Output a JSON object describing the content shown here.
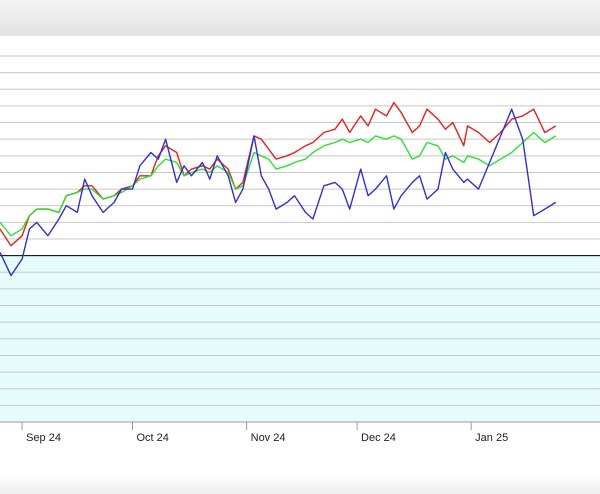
{
  "chart_data": {
    "type": "line",
    "title": "",
    "xlabel": "",
    "ylabel": "",
    "x_ticks": [
      "Sep 24",
      "Oct 24",
      "Nov 24",
      "Dec 24",
      "Jan 25"
    ],
    "x_range": [
      "2024-08-26",
      "2025-02-05"
    ],
    "y_range": [
      0,
      110
    ],
    "reference_line": 50,
    "grid": true,
    "lower_band_color": "#e6fbfb",
    "series": [
      {
        "color": "#e82020",
        "points": [
          [
            "2024-08-26",
            58
          ],
          [
            "2024-08-29",
            53
          ],
          [
            "2024-09-01",
            56
          ],
          [
            "2024-09-03",
            62
          ],
          [
            "2024-09-05",
            64
          ],
          [
            "2024-09-08",
            64
          ],
          [
            "2024-09-11",
            63
          ],
          [
            "2024-09-13",
            68
          ],
          [
            "2024-09-16",
            69
          ],
          [
            "2024-09-18",
            71
          ],
          [
            "2024-09-20",
            71
          ],
          [
            "2024-09-23",
            67
          ],
          [
            "2024-09-26",
            68
          ],
          [
            "2024-09-28",
            70
          ],
          [
            "2024-10-01",
            71
          ],
          [
            "2024-10-03",
            74
          ],
          [
            "2024-10-06",
            74
          ],
          [
            "2024-10-08",
            80
          ],
          [
            "2024-10-10",
            83
          ],
          [
            "2024-10-13",
            81
          ],
          [
            "2024-10-15",
            74
          ],
          [
            "2024-10-17",
            76
          ],
          [
            "2024-10-20",
            77
          ],
          [
            "2024-10-22",
            76
          ],
          [
            "2024-10-24",
            79
          ],
          [
            "2024-10-27",
            76
          ],
          [
            "2024-10-29",
            70
          ],
          [
            "2024-10-31",
            72
          ],
          [
            "2024-11-03",
            86
          ],
          [
            "2024-11-05",
            85
          ],
          [
            "2024-11-07",
            82
          ],
          [
            "2024-11-09",
            79
          ],
          [
            "2024-11-12",
            80
          ],
          [
            "2024-11-14",
            81
          ],
          [
            "2024-11-17",
            83
          ],
          [
            "2024-11-19",
            84
          ],
          [
            "2024-11-22",
            87
          ],
          [
            "2024-11-25",
            88
          ],
          [
            "2024-11-27",
            91
          ],
          [
            "2024-11-29",
            87
          ],
          [
            "2024-12-02",
            92
          ],
          [
            "2024-12-04",
            89
          ],
          [
            "2024-12-06",
            94
          ],
          [
            "2024-12-09",
            92
          ],
          [
            "2024-12-11",
            96
          ],
          [
            "2024-12-13",
            93
          ],
          [
            "2024-12-16",
            87
          ],
          [
            "2024-12-18",
            89
          ],
          [
            "2024-12-20",
            94
          ],
          [
            "2024-12-23",
            91
          ],
          [
            "2024-12-25",
            88
          ],
          [
            "2024-12-27",
            90
          ],
          [
            "2024-12-30",
            83
          ],
          [
            "2024-12-31",
            89
          ],
          [
            "2025-01-03",
            87
          ],
          [
            "2025-01-06",
            84
          ],
          [
            "2025-01-09",
            87
          ],
          [
            "2025-01-12",
            91
          ],
          [
            "2025-01-15",
            92
          ],
          [
            "2025-01-18",
            94
          ],
          [
            "2025-01-21",
            87
          ],
          [
            "2025-01-24",
            89
          ]
        ]
      },
      {
        "color": "#30e030",
        "points": [
          [
            "2024-08-26",
            60
          ],
          [
            "2024-08-29",
            56
          ],
          [
            "2024-09-01",
            58
          ],
          [
            "2024-09-03",
            62
          ],
          [
            "2024-09-05",
            64
          ],
          [
            "2024-09-08",
            64
          ],
          [
            "2024-09-11",
            63
          ],
          [
            "2024-09-13",
            68
          ],
          [
            "2024-09-16",
            69
          ],
          [
            "2024-09-18",
            70
          ],
          [
            "2024-09-20",
            70
          ],
          [
            "2024-09-23",
            67
          ],
          [
            "2024-09-26",
            68
          ],
          [
            "2024-09-28",
            69
          ],
          [
            "2024-10-01",
            71
          ],
          [
            "2024-10-03",
            73
          ],
          [
            "2024-10-06",
            74
          ],
          [
            "2024-10-08",
            77
          ],
          [
            "2024-10-10",
            79
          ],
          [
            "2024-10-13",
            78
          ],
          [
            "2024-10-15",
            74
          ],
          [
            "2024-10-17",
            75
          ],
          [
            "2024-10-20",
            76
          ],
          [
            "2024-10-22",
            75
          ],
          [
            "2024-10-24",
            77
          ],
          [
            "2024-10-27",
            75
          ],
          [
            "2024-10-29",
            70
          ],
          [
            "2024-10-31",
            71
          ],
          [
            "2024-11-03",
            81
          ],
          [
            "2024-11-05",
            80
          ],
          [
            "2024-11-07",
            79
          ],
          [
            "2024-11-09",
            76
          ],
          [
            "2024-11-12",
            77
          ],
          [
            "2024-11-14",
            78
          ],
          [
            "2024-11-17",
            79
          ],
          [
            "2024-11-19",
            81
          ],
          [
            "2024-11-22",
            83
          ],
          [
            "2024-11-25",
            84
          ],
          [
            "2024-11-27",
            85
          ],
          [
            "2024-11-29",
            84
          ],
          [
            "2024-12-02",
            85
          ],
          [
            "2024-12-04",
            84
          ],
          [
            "2024-12-06",
            86
          ],
          [
            "2024-12-09",
            85
          ],
          [
            "2024-12-11",
            86
          ],
          [
            "2024-12-13",
            85
          ],
          [
            "2024-12-16",
            79
          ],
          [
            "2024-12-18",
            80
          ],
          [
            "2024-12-20",
            84
          ],
          [
            "2024-12-23",
            83
          ],
          [
            "2024-12-25",
            79
          ],
          [
            "2024-12-27",
            80
          ],
          [
            "2024-12-30",
            78
          ],
          [
            "2024-12-31",
            80
          ],
          [
            "2025-01-03",
            79
          ],
          [
            "2025-01-06",
            77
          ],
          [
            "2025-01-09",
            79
          ],
          [
            "2025-01-12",
            81
          ],
          [
            "2025-01-15",
            84
          ],
          [
            "2025-01-18",
            87
          ],
          [
            "2025-01-21",
            84
          ],
          [
            "2025-01-24",
            86
          ]
        ]
      },
      {
        "color": "#3030d0",
        "points": [
          [
            "2024-08-26",
            51
          ],
          [
            "2024-08-29",
            44
          ],
          [
            "2024-09-01",
            49
          ],
          [
            "2024-09-03",
            58
          ],
          [
            "2024-09-05",
            60
          ],
          [
            "2024-09-08",
            56
          ],
          [
            "2024-09-11",
            61
          ],
          [
            "2024-09-13",
            65
          ],
          [
            "2024-09-16",
            63
          ],
          [
            "2024-09-18",
            73
          ],
          [
            "2024-09-20",
            68
          ],
          [
            "2024-09-23",
            63
          ],
          [
            "2024-09-26",
            66
          ],
          [
            "2024-09-28",
            70
          ],
          [
            "2024-10-01",
            70
          ],
          [
            "2024-10-03",
            77
          ],
          [
            "2024-10-06",
            81
          ],
          [
            "2024-10-08",
            79
          ],
          [
            "2024-10-10",
            85
          ],
          [
            "2024-10-13",
            72
          ],
          [
            "2024-10-15",
            77
          ],
          [
            "2024-10-17",
            74
          ],
          [
            "2024-10-20",
            78
          ],
          [
            "2024-10-22",
            73
          ],
          [
            "2024-10-24",
            80
          ],
          [
            "2024-10-27",
            74
          ],
          [
            "2024-10-29",
            66
          ],
          [
            "2024-10-31",
            70
          ],
          [
            "2024-11-03",
            86
          ],
          [
            "2024-11-05",
            74
          ],
          [
            "2024-11-07",
            70
          ],
          [
            "2024-11-09",
            64
          ],
          [
            "2024-11-12",
            66
          ],
          [
            "2024-11-14",
            68
          ],
          [
            "2024-11-17",
            63
          ],
          [
            "2024-11-19",
            61
          ],
          [
            "2024-11-22",
            71
          ],
          [
            "2024-11-25",
            72
          ],
          [
            "2024-11-27",
            70
          ],
          [
            "2024-11-29",
            64
          ],
          [
            "2024-12-02",
            76
          ],
          [
            "2024-12-04",
            68
          ],
          [
            "2024-12-06",
            70
          ],
          [
            "2024-12-09",
            74
          ],
          [
            "2024-12-11",
            64
          ],
          [
            "2024-12-13",
            68
          ],
          [
            "2024-12-16",
            72
          ],
          [
            "2024-12-18",
            74
          ],
          [
            "2024-12-20",
            67
          ],
          [
            "2024-12-23",
            70
          ],
          [
            "2024-12-25",
            81
          ],
          [
            "2024-12-27",
            76
          ],
          [
            "2024-12-30",
            72
          ],
          [
            "2024-12-31",
            73
          ],
          [
            "2025-01-03",
            70
          ],
          [
            "2025-01-06",
            78
          ],
          [
            "2025-01-09",
            86
          ],
          [
            "2025-01-12",
            94
          ],
          [
            "2025-01-15",
            85
          ],
          [
            "2025-01-18",
            62
          ],
          [
            "2025-01-21",
            64
          ],
          [
            "2025-01-24",
            66
          ]
        ]
      }
    ]
  }
}
